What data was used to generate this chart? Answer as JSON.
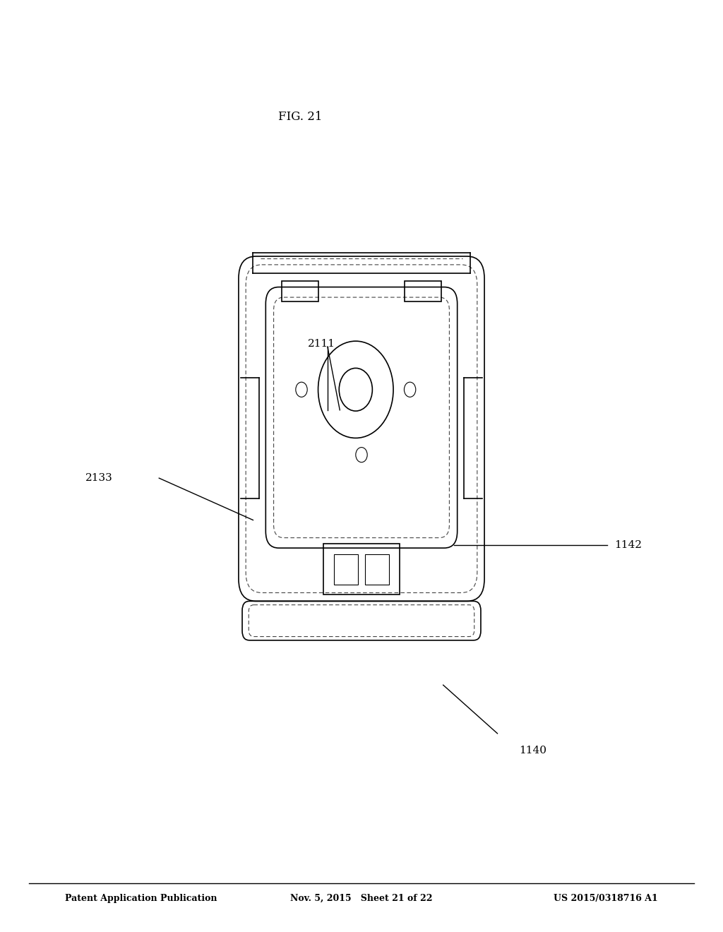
{
  "background_color": "#ffffff",
  "header_left": "Patent Application Publication",
  "header_center": "Nov. 5, 2015   Sheet 21 of 22",
  "header_right": "US 2015/0318716 A1",
  "fig_label": "FIG. 21",
  "label_1140": "1140",
  "label_1142": "1142",
  "label_2133": "2133",
  "label_2111": "2111"
}
